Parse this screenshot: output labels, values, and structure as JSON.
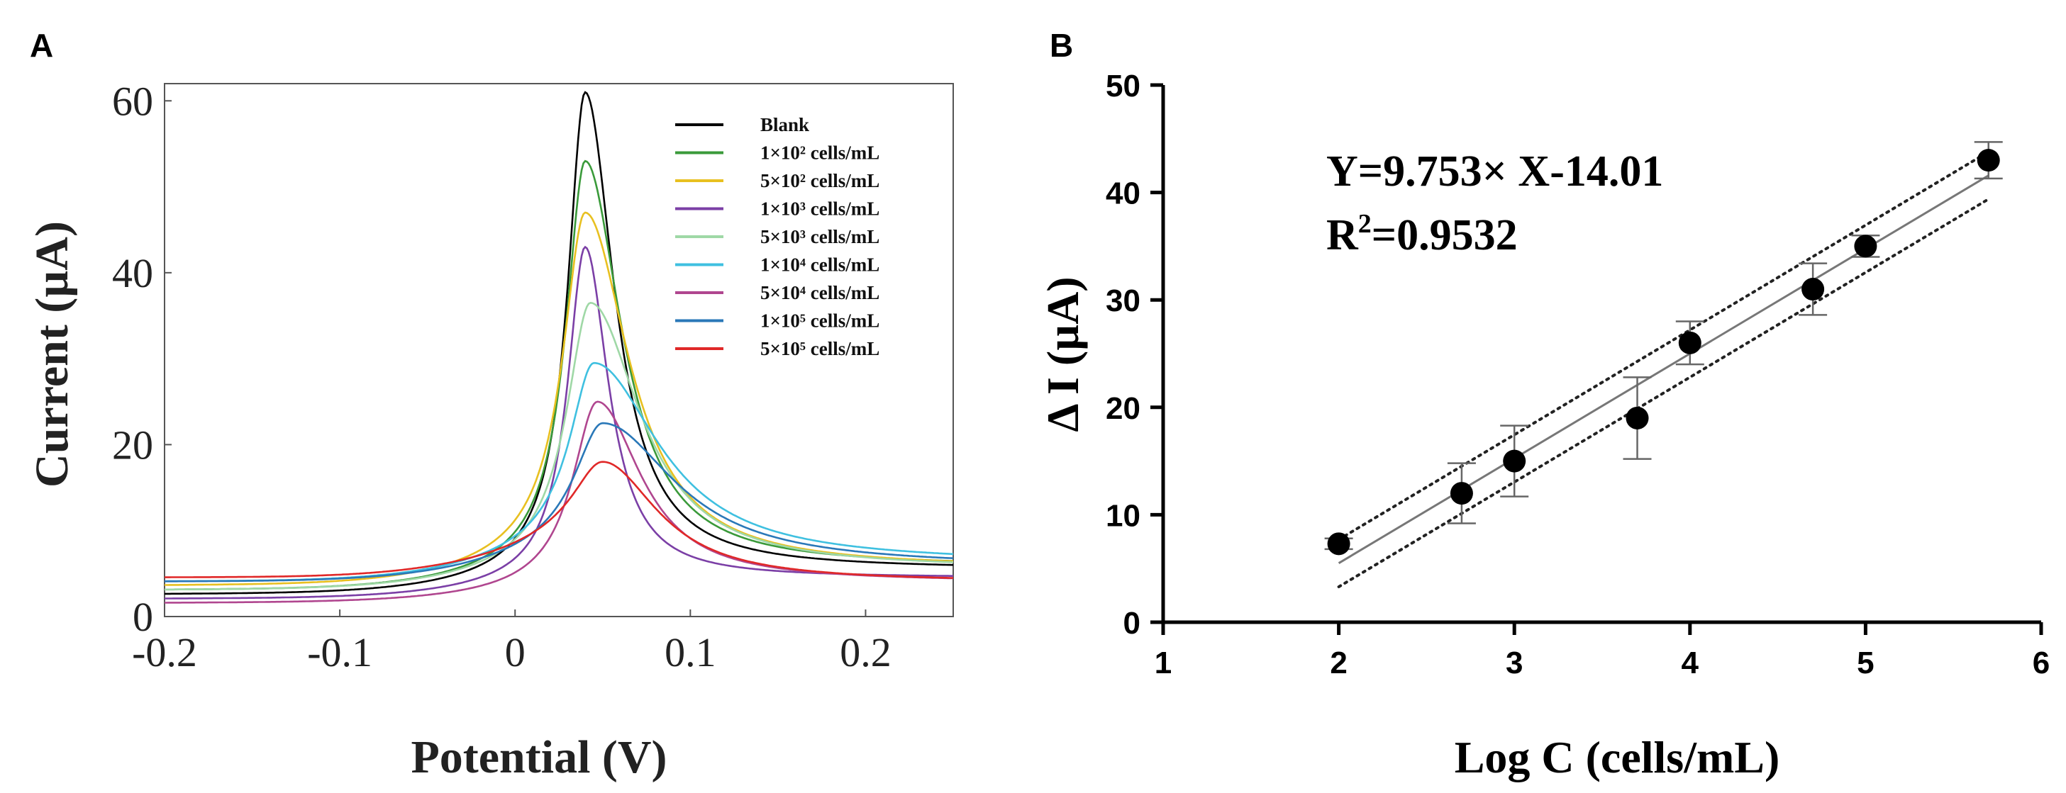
{
  "panel_a": {
    "label": "A",
    "chart_data": {
      "type": "line",
      "xlabel": "Potential (V)",
      "ylabel": "Current (µA)",
      "xlim": [
        -0.2,
        0.25
      ],
      "ylim": [
        0,
        62
      ],
      "xticks": [
        "-0.2",
        "-0.1",
        "0",
        "0.1",
        "0.2"
      ],
      "xtick_values": [
        -0.2,
        -0.1,
        0,
        0.1,
        0.2
      ],
      "yticks": [
        "0",
        "20",
        "40",
        "60"
      ],
      "ytick_values": [
        0,
        20,
        40,
        60
      ],
      "series": [
        {
          "name": "Blank",
          "color": "#000000",
          "peak": 61,
          "peak_x": 0.04,
          "base_left": 2.5,
          "base_right": 5.5,
          "width_left": 0.012,
          "width_right": 0.02
        },
        {
          "name": "1×10² cells/mL",
          "color": "#3a9a3a",
          "peak": 53,
          "peak_x": 0.04,
          "base_left": 3.0,
          "base_right": 5.8,
          "width_left": 0.013,
          "width_right": 0.025
        },
        {
          "name": "5×10² cells/mL",
          "color": "#e8c020",
          "peak": 47,
          "peak_x": 0.04,
          "base_left": 3.5,
          "base_right": 5.6,
          "width_left": 0.015,
          "width_right": 0.03
        },
        {
          "name": "1×10³ cells/mL",
          "color": "#7b3fa6",
          "peak": 43,
          "peak_x": 0.04,
          "base_left": 2.0,
          "base_right": 4.5,
          "width_left": 0.012,
          "width_right": 0.016
        },
        {
          "name": "5×10³ cells/mL",
          "color": "#9fd8a6",
          "peak": 36.5,
          "peak_x": 0.043,
          "base_left": 3.0,
          "base_right": 5.5,
          "width_left": 0.016,
          "width_right": 0.034
        },
        {
          "name": "1×10⁴ cells/mL",
          "color": "#3fc0e0",
          "peak": 29.5,
          "peak_x": 0.045,
          "base_left": 4.0,
          "base_right": 6.2,
          "width_left": 0.016,
          "width_right": 0.045
        },
        {
          "name": "5×10⁴ cells/mL",
          "color": "#b0468f",
          "peak": 25,
          "peak_x": 0.047,
          "base_left": 1.5,
          "base_right": 4.0,
          "width_left": 0.017,
          "width_right": 0.03
        },
        {
          "name": "1×10⁵ cells/mL",
          "color": "#2a78b8",
          "peak": 22.5,
          "peak_x": 0.05,
          "base_left": 4.0,
          "base_right": 5.8,
          "width_left": 0.018,
          "width_right": 0.05
        },
        {
          "name": "5×10⁵ cells/mL",
          "color": "#e02828",
          "peak": 18,
          "peak_x": 0.05,
          "base_left": 4.5,
          "base_right": 4.0,
          "width_left": 0.018,
          "width_right": 0.038
        }
      ],
      "legend_position": "top-right"
    }
  },
  "panel_b": {
    "label": "B",
    "chart_data": {
      "type": "scatter",
      "xlabel": "Log C (cells/mL)",
      "ylabel": "Δ I (µA)",
      "xlim": [
        1,
        6
      ],
      "ylim": [
        0,
        50
      ],
      "xticks": [
        "1",
        "2",
        "3",
        "4",
        "5",
        "6"
      ],
      "xtick_values": [
        1,
        2,
        3,
        4,
        5,
        6
      ],
      "yticks": [
        "0",
        "10",
        "20",
        "30",
        "40",
        "50"
      ],
      "ytick_values": [
        0,
        10,
        20,
        30,
        40,
        50
      ],
      "points": [
        {
          "x": 2.0,
          "y": 7.3,
          "err": 0.5
        },
        {
          "x": 2.7,
          "y": 12.0,
          "err": 2.8
        },
        {
          "x": 3.0,
          "y": 15.0,
          "err": 3.3
        },
        {
          "x": 3.7,
          "y": 19.0,
          "err": 3.8
        },
        {
          "x": 4.0,
          "y": 26.0,
          "err": 2.0
        },
        {
          "x": 4.7,
          "y": 31.0,
          "err": 2.4
        },
        {
          "x": 5.0,
          "y": 35.0,
          "err": 1.0
        },
        {
          "x": 5.7,
          "y": 43.0,
          "err": 1.7
        }
      ],
      "fit": {
        "slope": 9.753,
        "intercept": -14.01,
        "x_range": [
          2,
          5.7
        ],
        "band_offset": 2.2
      },
      "equation": "Y=9.753× X-14.01",
      "r2_label": "R",
      "r2_sup": "2",
      "r2_value": "=0.9532"
    }
  }
}
